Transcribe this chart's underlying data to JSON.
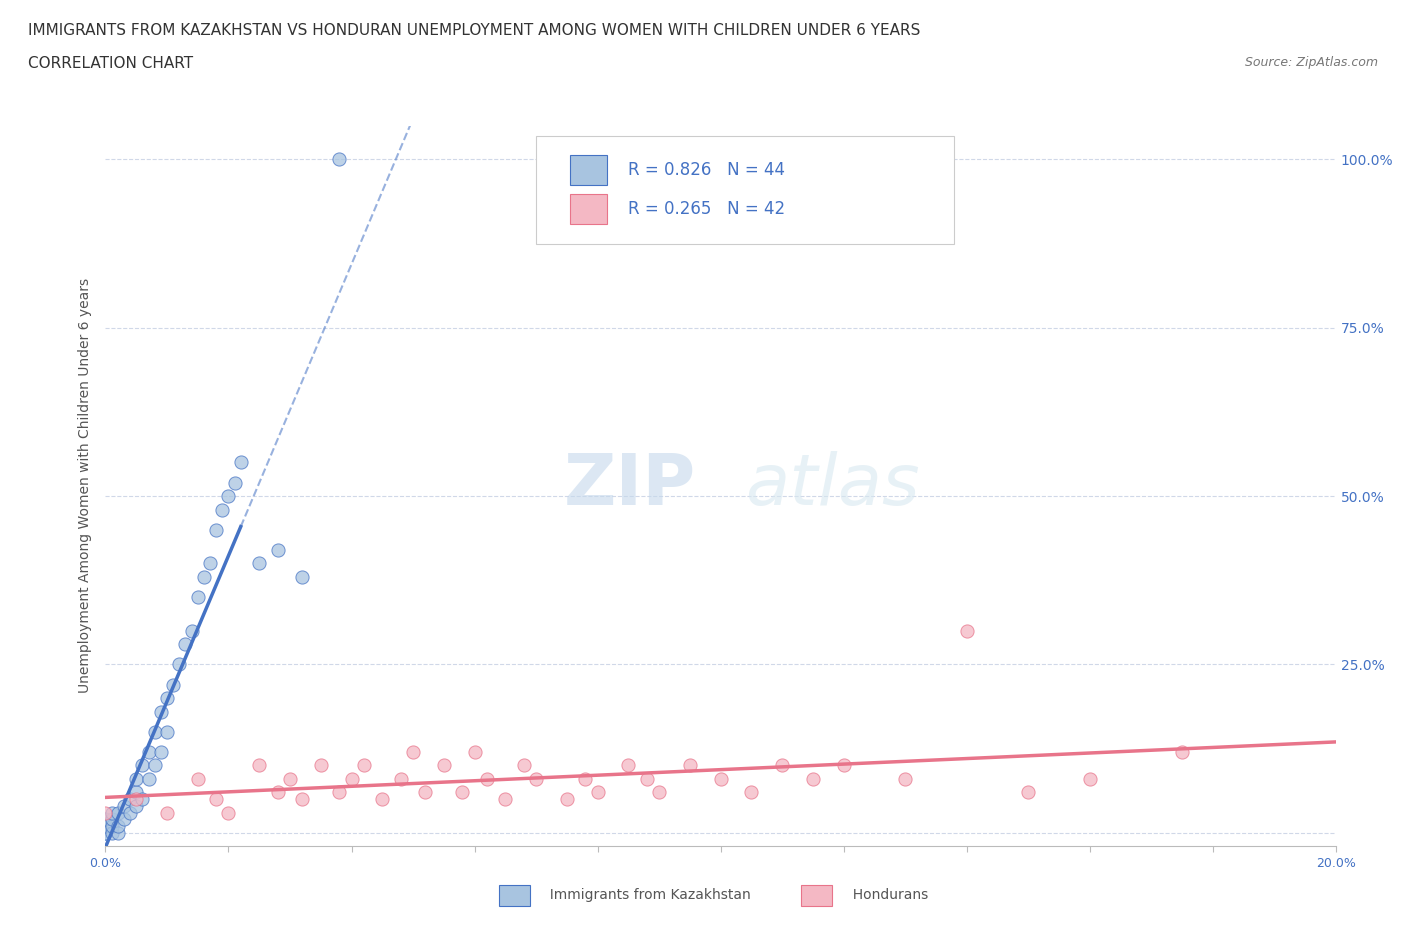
{
  "title": "IMMIGRANTS FROM KAZAKHSTAN VS HONDURAN UNEMPLOYMENT AMONG WOMEN WITH CHILDREN UNDER 6 YEARS",
  "subtitle": "CORRELATION CHART",
  "source": "Source: ZipAtlas.com",
  "ylabel": "Unemployment Among Women with Children Under 6 years",
  "xlim": [
    0.0,
    0.2
  ],
  "ylim": [
    -0.02,
    1.05
  ],
  "blue_scatter_x": [
    0.0,
    0.0,
    0.0,
    0.0,
    0.001,
    0.001,
    0.001,
    0.001,
    0.002,
    0.002,
    0.002,
    0.003,
    0.003,
    0.004,
    0.004,
    0.005,
    0.005,
    0.005,
    0.006,
    0.006,
    0.007,
    0.007,
    0.008,
    0.008,
    0.009,
    0.009,
    0.01,
    0.01,
    0.011,
    0.012,
    0.013,
    0.014,
    0.015,
    0.016,
    0.017,
    0.018,
    0.019,
    0.02,
    0.021,
    0.022,
    0.025,
    0.028,
    0.032,
    0.038
  ],
  "blue_scatter_y": [
    0.0,
    0.0,
    0.01,
    0.02,
    0.0,
    0.01,
    0.02,
    0.03,
    0.0,
    0.01,
    0.03,
    0.02,
    0.04,
    0.03,
    0.05,
    0.04,
    0.06,
    0.08,
    0.05,
    0.1,
    0.08,
    0.12,
    0.1,
    0.15,
    0.12,
    0.18,
    0.15,
    0.2,
    0.22,
    0.25,
    0.28,
    0.3,
    0.35,
    0.38,
    0.4,
    0.45,
    0.48,
    0.5,
    0.52,
    0.55,
    0.4,
    0.42,
    0.38,
    1.0
  ],
  "pink_scatter_x": [
    0.0,
    0.005,
    0.01,
    0.015,
    0.018,
    0.02,
    0.025,
    0.028,
    0.03,
    0.032,
    0.035,
    0.038,
    0.04,
    0.042,
    0.045,
    0.048,
    0.05,
    0.052,
    0.055,
    0.058,
    0.06,
    0.062,
    0.065,
    0.068,
    0.07,
    0.075,
    0.078,
    0.08,
    0.085,
    0.088,
    0.09,
    0.095,
    0.1,
    0.105,
    0.11,
    0.115,
    0.12,
    0.13,
    0.14,
    0.15,
    0.16,
    0.175
  ],
  "pink_scatter_y": [
    0.03,
    0.05,
    0.03,
    0.08,
    0.05,
    0.03,
    0.1,
    0.06,
    0.08,
    0.05,
    0.1,
    0.06,
    0.08,
    0.1,
    0.05,
    0.08,
    0.12,
    0.06,
    0.1,
    0.06,
    0.12,
    0.08,
    0.05,
    0.1,
    0.08,
    0.05,
    0.08,
    0.06,
    0.1,
    0.08,
    0.06,
    0.1,
    0.08,
    0.06,
    0.1,
    0.08,
    0.1,
    0.08,
    0.3,
    0.06,
    0.08,
    0.12
  ],
  "blue_line_color": "#4472C4",
  "pink_line_color": "#E8748A",
  "blue_scatter_facecolor": "#A8C4E0",
  "blue_scatter_edgecolor": "#4472C4",
  "pink_scatter_facecolor": "#F4B8C4",
  "pink_scatter_edgecolor": "#E8748A",
  "legend_text_color": "#4472C4",
  "blue_R": "R = 0.826",
  "blue_N": "N = 44",
  "pink_R": "R = 0.265",
  "pink_N": "N = 42",
  "watermark_zip": "ZIP",
  "watermark_atlas": "atlas",
  "background_color": "#FFFFFF",
  "grid_color": "#D0D8E8",
  "title_fontsize": 11,
  "subtitle_fontsize": 11,
  "source_fontsize": 9,
  "axis_label_fontsize": 10,
  "tick_label_color": "#4472C4",
  "bottom_legend_blue": "Immigrants from Kazakhstan",
  "bottom_legend_pink": "Hondurans"
}
